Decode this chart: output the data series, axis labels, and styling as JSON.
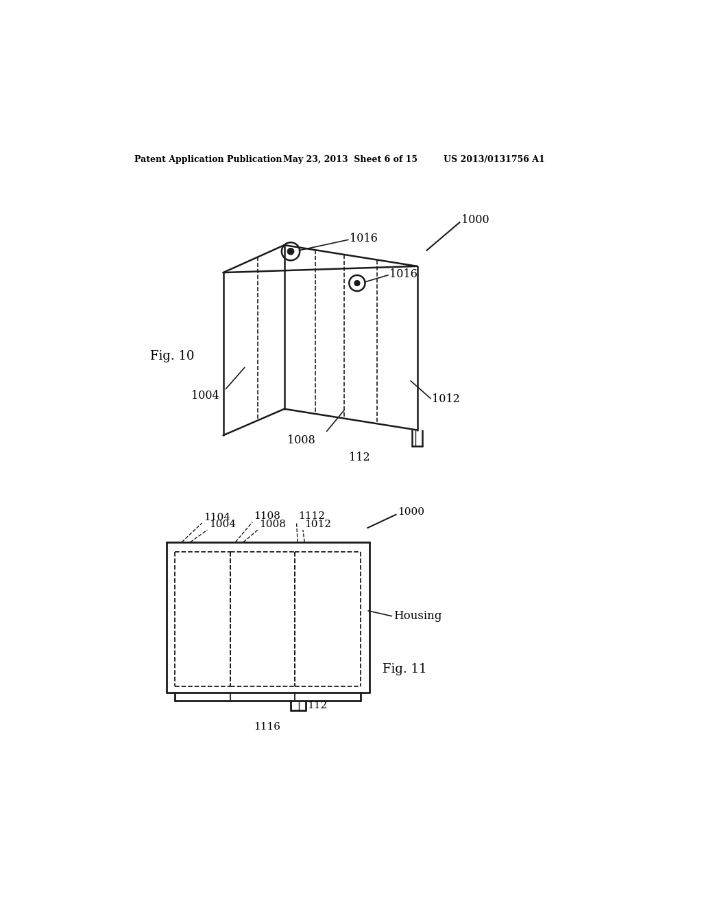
{
  "bg_color": "#ffffff",
  "header_left": "Patent Application Publication",
  "header_mid": "May 23, 2013  Sheet 6 of 15",
  "header_right": "US 2013/0131756 A1",
  "fig10_label": "Fig. 10",
  "fig11_label": "Fig. 11",
  "labels": {
    "1000_top": "1000",
    "1016_top": "1016",
    "1016_bot": "1016",
    "1004": "1004",
    "1008": "1008",
    "1012": "1012",
    "112_top": "112",
    "1104": "1104",
    "1108": "1108",
    "1112": "1112",
    "1004b": "1004",
    "1008b": "1008",
    "1012b": "1012",
    "1000b": "1000",
    "housing": "Housing",
    "112b": "112",
    "1116": "1116"
  }
}
